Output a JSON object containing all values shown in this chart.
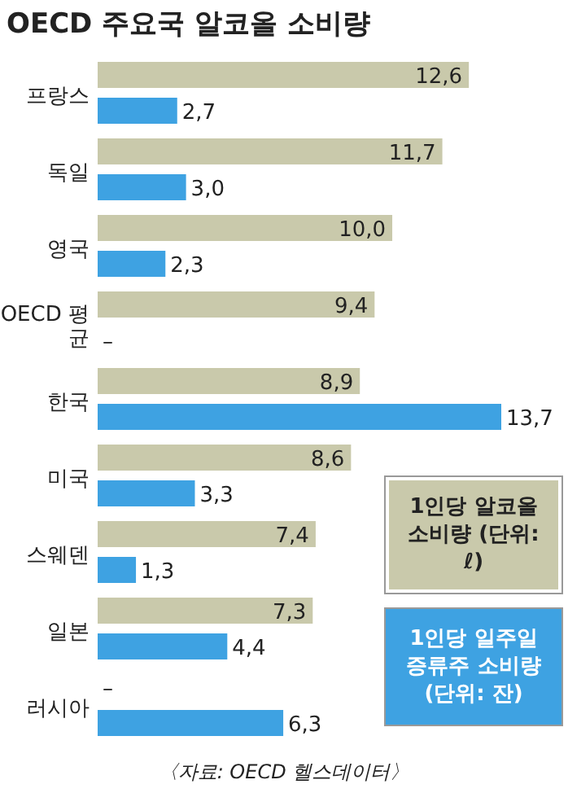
{
  "chart_data": {
    "type": "bar",
    "orientation": "horizontal",
    "title": "OECD 주요국 알코올 소비량",
    "categories": [
      "프랑스",
      "독일",
      "영국",
      "OECD 평균",
      "한국",
      "미국",
      "스웨덴",
      "일본",
      "러시아"
    ],
    "series": [
      {
        "name": "1인당 알코올 소비량 (단위: ℓ)",
        "color": "#c9c9ab",
        "values": [
          12.6,
          11.7,
          10.0,
          9.4,
          8.9,
          8.6,
          7.4,
          7.3,
          null
        ],
        "value_labels": [
          "12,6",
          "11,7",
          "10,0",
          "9,4",
          "8,9",
          "8,6",
          "7,4",
          "7,3",
          "–"
        ]
      },
      {
        "name": "1인당 일주일 증류주 소비량 (단위: 잔)",
        "color": "#3ea2e2",
        "values": [
          2.7,
          3.0,
          2.3,
          null,
          13.7,
          3.3,
          1.3,
          4.4,
          6.3
        ],
        "value_labels": [
          "2,7",
          "3,0",
          "2,3",
          "–",
          "13,7",
          "3,3",
          "1,3",
          "4,4",
          "6,3"
        ]
      }
    ],
    "legend": "bottom right",
    "annotations": [
      "〈자료: OECD 헬스데이터〉"
    ]
  }
}
